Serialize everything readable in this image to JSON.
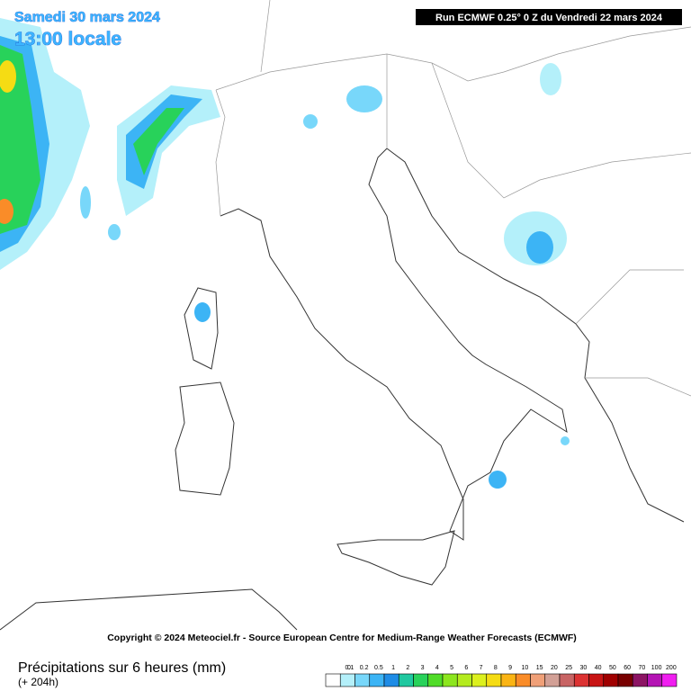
{
  "header": {
    "date": "Samedi 30 mars 2024",
    "time": "13:00 locale",
    "run": "Run ECMWF 0.25° 0 Z du Vendredi 22 mars 2024"
  },
  "copyright": "Copyright © 2024 Meteociel.fr - Source European Centre for Medium-Range Weather Forecasts (ECMWF)",
  "footer": {
    "title": "Précipitations sur 6 heures (mm)",
    "subtitle": "(+ 204h)"
  },
  "legend": {
    "items": [
      {
        "value": 0,
        "color": "#ffffff"
      },
      {
        "value": 0.1,
        "color": "#b4f0fa"
      },
      {
        "value": 0.2,
        "color": "#78d7fa"
      },
      {
        "value": 0.5,
        "color": "#3cb4f5"
      },
      {
        "value": 1,
        "color": "#1e8ce6"
      },
      {
        "value": 2,
        "color": "#20c8a0"
      },
      {
        "value": 3,
        "color": "#28d25a"
      },
      {
        "value": 4,
        "color": "#50dc28"
      },
      {
        "value": 5,
        "color": "#8ce61e"
      },
      {
        "value": 6,
        "color": "#b4eb1e"
      },
      {
        "value": 7,
        "color": "#dcf01e"
      },
      {
        "value": 8,
        "color": "#f5dc14"
      },
      {
        "value": 9,
        "color": "#fab414"
      },
      {
        "value": 10,
        "color": "#fa8c28"
      },
      {
        "value": 15,
        "color": "#f0a078"
      },
      {
        "value": 20,
        "color": "#d2a096"
      },
      {
        "value": 25,
        "color": "#c86464"
      },
      {
        "value": 30,
        "color": "#dc3232"
      },
      {
        "value": 40,
        "color": "#c81414"
      },
      {
        "value": 50,
        "color": "#a00000"
      },
      {
        "value": 60,
        "color": "#780000"
      },
      {
        "value": 70,
        "color": "#8c1464"
      },
      {
        "value": 100,
        "color": "#b414b4"
      },
      {
        "value": 200,
        "color": "#f01ef0"
      }
    ]
  }
}
